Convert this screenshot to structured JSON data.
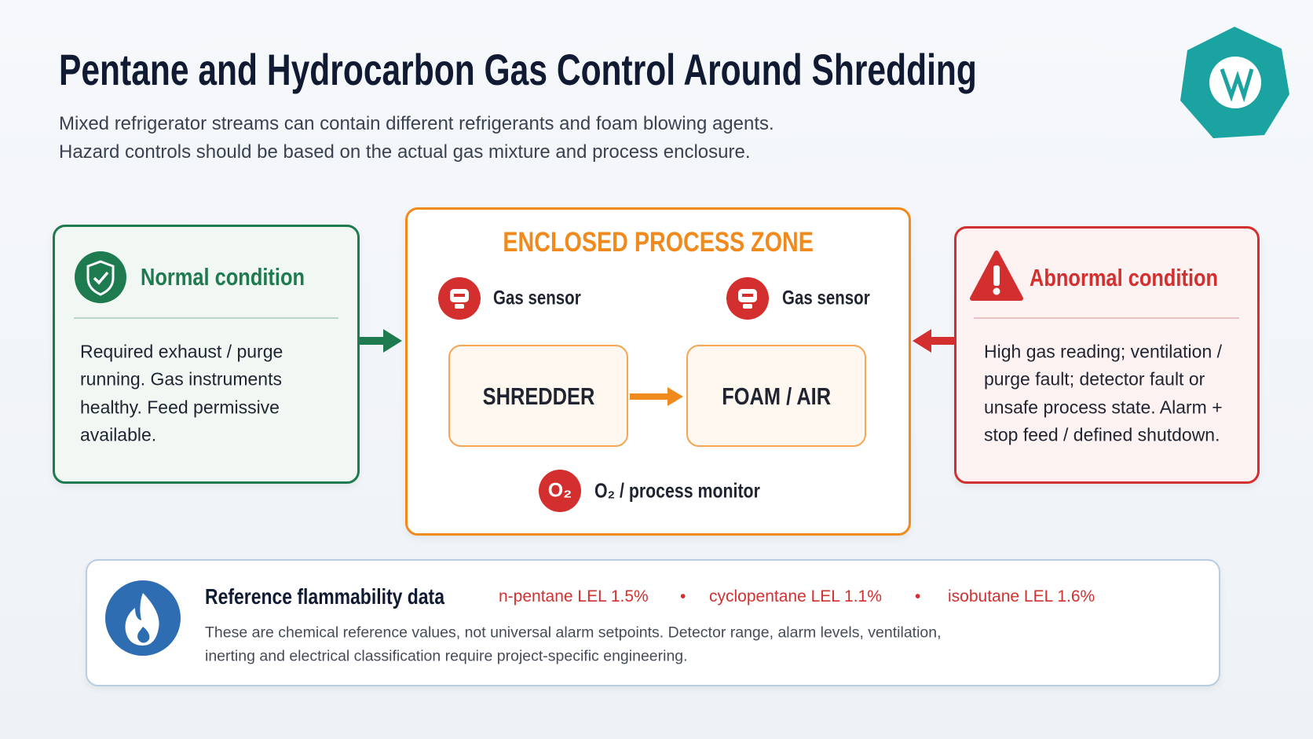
{
  "header": {
    "title": "Pentane and Hydrocarbon Gas Control Around Shredding",
    "subtitle": [
      "Mixed refrigerator streams can contain different refrigerants and foam blowing agents.",
      "Hazard controls should be based on the actual gas mixture and process enclosure."
    ]
  },
  "normal": {
    "title": "Normal condition",
    "lines": [
      "Required exhaust / purge",
      "running. Gas instruments",
      "healthy. Feed permissive",
      "available."
    ]
  },
  "zone": {
    "title": "ENCLOSED PROCESS ZONE",
    "sensors": [
      "Gas sensor",
      "Gas sensor"
    ],
    "stages": [
      "SHREDDER",
      "FOAM / AIR"
    ],
    "monitor_icon": "O₂",
    "monitor": "O₂ / process monitor"
  },
  "abnormal": {
    "title": "Abnormal condition",
    "lines": [
      "High gas reading; ventilation /",
      "purge fault; detector fault or",
      "unsafe process state. Alarm +",
      "stop feed / defined shutdown."
    ]
  },
  "reference": {
    "title": "Reference flammability data",
    "items": [
      "n-pentane LEL 1.5%",
      "cyclopentane LEL 1.1%",
      "isobutane LEL 1.6%"
    ],
    "note": [
      "These are chemical reference values, not universal alarm setpoints. Detector range, alarm levels, ventilation,",
      "inerting and electrical classification require project-specific engineering."
    ]
  }
}
